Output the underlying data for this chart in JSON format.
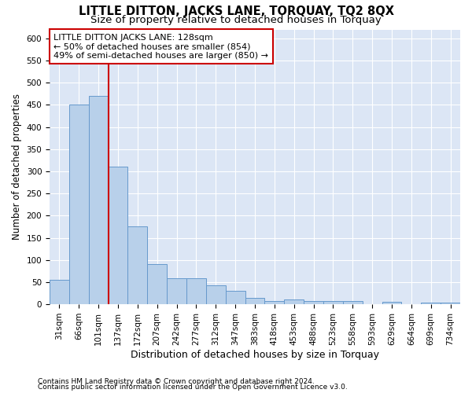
{
  "title": "LITTLE DITTON, JACKS LANE, TORQUAY, TQ2 8QX",
  "subtitle": "Size of property relative to detached houses in Torquay",
  "xlabel": "Distribution of detached houses by size in Torquay",
  "ylabel": "Number of detached properties",
  "categories": [
    "31sqm",
    "66sqm",
    "101sqm",
    "137sqm",
    "172sqm",
    "207sqm",
    "242sqm",
    "277sqm",
    "312sqm",
    "347sqm",
    "383sqm",
    "418sqm",
    "453sqm",
    "488sqm",
    "523sqm",
    "558sqm",
    "593sqm",
    "629sqm",
    "664sqm",
    "699sqm",
    "734sqm"
  ],
  "values": [
    55,
    450,
    470,
    310,
    175,
    90,
    58,
    58,
    42,
    30,
    15,
    8,
    10,
    8,
    8,
    8,
    0,
    5,
    0,
    4,
    4
  ],
  "bar_color": "#b8d0ea",
  "bar_edge_color": "#6699cc",
  "red_line_x": 2.5,
  "annotation_title": "LITTLE DITTON JACKS LANE: 128sqm",
  "annotation_line1": "← 50% of detached houses are smaller (854)",
  "annotation_line2": "49% of semi-detached houses are larger (850) →",
  "annotation_box_color": "#ffffff",
  "annotation_box_edge_color": "#cc0000",
  "vline_color": "#cc0000",
  "background_color": "#dce6f5",
  "footer1": "Contains HM Land Registry data © Crown copyright and database right 2024.",
  "footer2": "Contains public sector information licensed under the Open Government Licence v3.0.",
  "ylim": [
    0,
    620
  ],
  "yticks": [
    0,
    50,
    100,
    150,
    200,
    250,
    300,
    350,
    400,
    450,
    500,
    550,
    600
  ],
  "title_fontsize": 10.5,
  "subtitle_fontsize": 9.5,
  "ylabel_fontsize": 8.5,
  "xlabel_fontsize": 9,
  "annot_fontsize": 8,
  "tick_fontsize": 7.5,
  "footer_fontsize": 6.5
}
